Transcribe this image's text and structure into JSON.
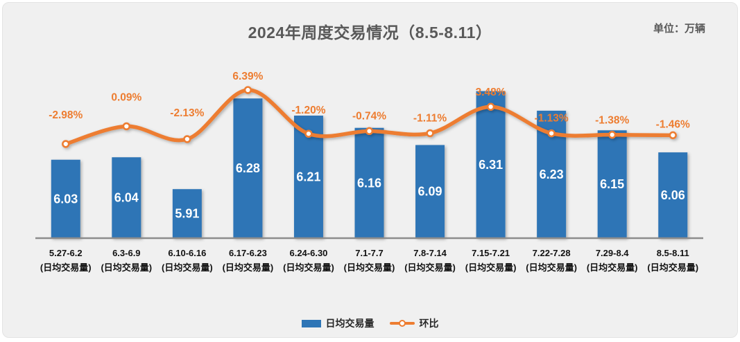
{
  "header": {
    "title": "2024年周度交易情况（8.5-8.11）",
    "unit_label": "单位：万辆"
  },
  "chart_data": {
    "type": "bar+line",
    "title": "2024年周度交易情况（8.5-8.11）",
    "unit": "万辆",
    "categories": [
      "5.27-6.2",
      "6.3-6.9",
      "6.10-6.16",
      "6.17-6.23",
      "6.24-6.30",
      "7.1-7.7",
      "7.8-7.14",
      "7.15-7.21",
      "7.22-7.28",
      "7.29-8.4",
      "8.5-8.11"
    ],
    "category_sublabel": "(日均交易量)",
    "series": [
      {
        "name": "日均交易量",
        "kind": "bar",
        "color": "#2E75B6",
        "values": [
          6.03,
          6.04,
          5.91,
          6.28,
          6.21,
          6.16,
          6.09,
          6.31,
          6.23,
          6.15,
          6.06
        ],
        "labels": [
          "6.03",
          "6.04",
          "5.91",
          "6.28",
          "6.21",
          "6.16",
          "6.09",
          "6.31",
          "6.23",
          "6.15",
          "6.06"
        ],
        "label_color": "#FFFFFF"
      },
      {
        "name": "环比",
        "kind": "line",
        "color": "#ED7D31",
        "marker": "circle-white-fill-orange-ring",
        "values": [
          -2.98,
          0.09,
          -2.13,
          6.39,
          -1.2,
          -0.74,
          -1.11,
          3.48,
          -1.13,
          -1.38,
          -1.46
        ],
        "labels": [
          "-2.98%",
          "0.09%",
          "-2.13%",
          "6.39%",
          "-1.20%",
          "-0.74%",
          "-1.11%",
          "3.48%",
          "-1.13%",
          "-1.38%",
          "-1.46%"
        ],
        "label_color": "#ED7D31"
      }
    ],
    "legend": [
      {
        "label": "日均交易量",
        "swatch": "bar",
        "color": "#2E75B6"
      },
      {
        "label": "环比",
        "swatch": "line-marker",
        "color": "#ED7D31"
      }
    ],
    "legend_position": "bottom-center",
    "axes": {
      "y_primary": {
        "visible": false,
        "implied_min": 5.71
      },
      "y_secondary": {
        "visible": false,
        "unit": "%"
      },
      "x_axis_line_color": "#8C8C8C",
      "gridlines": false
    },
    "xlabel": "",
    "ylabel": ""
  }
}
